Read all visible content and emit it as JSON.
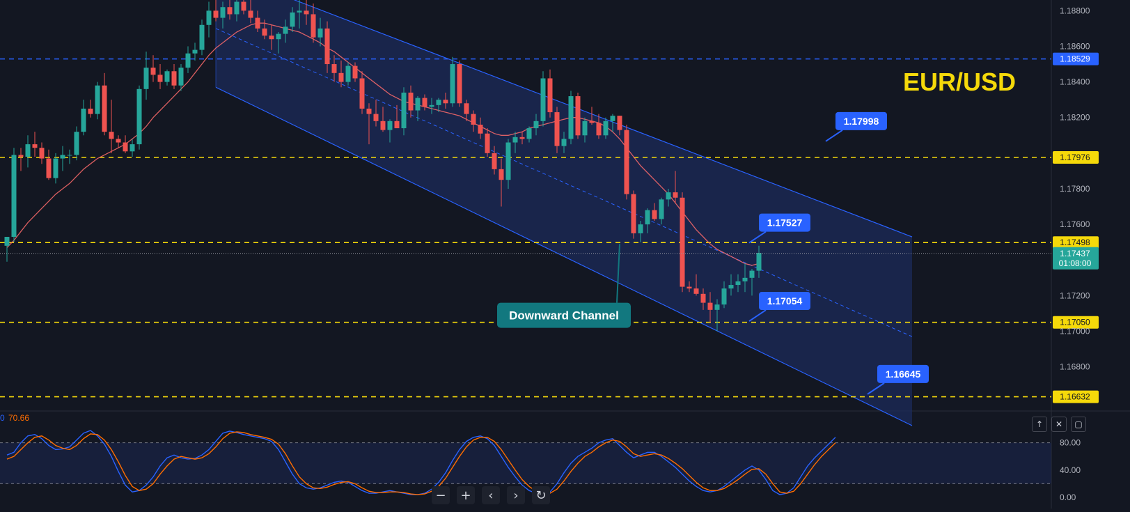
{
  "pair": "EUR/USD",
  "colors": {
    "background": "#131722",
    "up": "#26a69a",
    "down": "#ef5350",
    "channel_fill": "#1c2b5a",
    "channel_line": "#2962ff",
    "level_yellow": "#f5d90a",
    "level_blue": "#2962ff",
    "callout_blue": "#2962ff",
    "callout_teal": "#12787f",
    "sma": "#ff6b6b",
    "stoch_k": "#2962ff",
    "stoch_d": "#ff6d00"
  },
  "icons": [
    "zoom-out-icon",
    "zoom-in-icon",
    "scroll-left-icon",
    "scroll-right-icon",
    "reset-icon",
    "move-up-icon",
    "close-icon",
    "maximize-icon"
  ],
  "chart_data": [
    {
      "type": "candlestick",
      "title": "EUR/USD",
      "ylim": [
        1.1656,
        1.1886
      ],
      "y_ticks": [
        "1.18800",
        "1.18600",
        "1.18400",
        "1.18200",
        "1.17800",
        "1.17600",
        "1.17200",
        "1.17000",
        "1.16800"
      ],
      "last_price": "1.17437",
      "countdown": "01:08:00",
      "candles": [
        [
          1.1748,
          1.1753,
          1.1739,
          1.1753
        ],
        [
          1.1753,
          1.1803,
          1.175,
          1.1799
        ],
        [
          1.1799,
          1.1803,
          1.179,
          1.1798
        ],
        [
          1.1798,
          1.181,
          1.1792,
          1.1805
        ],
        [
          1.1805,
          1.1812,
          1.1798,
          1.1803
        ],
        [
          1.1803,
          1.1806,
          1.1794,
          1.1797
        ],
        [
          1.1797,
          1.1802,
          1.1785,
          1.1786
        ],
        [
          1.1786,
          1.18,
          1.1783,
          1.1797
        ],
        [
          1.1797,
          1.1804,
          1.179,
          1.1799
        ],
        [
          1.1799,
          1.1802,
          1.1794,
          1.1799
        ],
        [
          1.1799,
          1.1815,
          1.1796,
          1.1812
        ],
        [
          1.1812,
          1.183,
          1.181,
          1.1825
        ],
        [
          1.1825,
          1.183,
          1.182,
          1.1822
        ],
        [
          1.1822,
          1.184,
          1.1819,
          1.1838
        ],
        [
          1.1838,
          1.1845,
          1.181,
          1.1812
        ],
        [
          1.1812,
          1.183,
          1.18,
          1.1808
        ],
        [
          1.1808,
          1.181,
          1.1803,
          1.1806
        ],
        [
          1.1806,
          1.181,
          1.18,
          1.1801
        ],
        [
          1.1801,
          1.1808,
          1.1798,
          1.1805
        ],
        [
          1.1805,
          1.1838,
          1.1802,
          1.1836
        ],
        [
          1.1836,
          1.1857,
          1.183,
          1.1848
        ],
        [
          1.1848,
          1.1855,
          1.184,
          1.1844
        ],
        [
          1.1844,
          1.185,
          1.1836,
          1.184
        ],
        [
          1.184,
          1.1847,
          1.1838,
          1.1846
        ],
        [
          1.1846,
          1.185,
          1.1836,
          1.1838
        ],
        [
          1.1838,
          1.185,
          1.1835,
          1.1848
        ],
        [
          1.1848,
          1.186,
          1.1845,
          1.1856
        ],
        [
          1.1856,
          1.1862,
          1.1852,
          1.1858
        ],
        [
          1.1858,
          1.1875,
          1.1855,
          1.1872
        ],
        [
          1.1872,
          1.1885,
          1.1865,
          1.188
        ],
        [
          1.188,
          1.189,
          1.1874,
          1.1876
        ],
        [
          1.1876,
          1.1885,
          1.187,
          1.1882
        ],
        [
          1.1882,
          1.189,
          1.1875,
          1.1878
        ],
        [
          1.1878,
          1.1888,
          1.1874,
          1.1885
        ],
        [
          1.1885,
          1.1892,
          1.1878,
          1.188
        ],
        [
          1.188,
          1.1886,
          1.1873,
          1.1876
        ],
        [
          1.1876,
          1.188,
          1.1868,
          1.187
        ],
        [
          1.187,
          1.1875,
          1.1864,
          1.1866
        ],
        [
          1.1866,
          1.1872,
          1.1858,
          1.1864
        ],
        [
          1.1864,
          1.1868,
          1.1856,
          1.1867
        ],
        [
          1.1867,
          1.1875,
          1.1862,
          1.1871
        ],
        [
          1.1871,
          1.1882,
          1.1868,
          1.1879
        ],
        [
          1.1879,
          1.1886,
          1.187,
          1.188
        ],
        [
          1.188,
          1.1886,
          1.1872,
          1.1878
        ],
        [
          1.1878,
          1.1884,
          1.1862,
          1.1865
        ],
        [
          1.1865,
          1.1876,
          1.186,
          1.187
        ],
        [
          1.187,
          1.1874,
          1.1845,
          1.185
        ],
        [
          1.185,
          1.1855,
          1.184,
          1.1845
        ],
        [
          1.1845,
          1.1852,
          1.1837,
          1.184
        ],
        [
          1.184,
          1.1851,
          1.1838,
          1.1849
        ],
        [
          1.1849,
          1.1851,
          1.184,
          1.1842
        ],
        [
          1.1842,
          1.1846,
          1.1822,
          1.1825
        ],
        [
          1.1825,
          1.1828,
          1.1805,
          1.1822
        ],
        [
          1.1822,
          1.183,
          1.1815,
          1.1818
        ],
        [
          1.1818,
          1.1826,
          1.1812,
          1.1813
        ],
        [
          1.1813,
          1.1819,
          1.1806,
          1.1818
        ],
        [
          1.1818,
          1.1827,
          1.1816,
          1.1814
        ],
        [
          1.1814,
          1.1837,
          1.181,
          1.1834
        ],
        [
          1.1834,
          1.1838,
          1.182,
          1.1824
        ],
        [
          1.1824,
          1.1832,
          1.1818,
          1.1831
        ],
        [
          1.1831,
          1.1833,
          1.1824,
          1.1826
        ],
        [
          1.1826,
          1.1831,
          1.1822,
          1.1827
        ],
        [
          1.1827,
          1.1831,
          1.1823,
          1.183
        ],
        [
          1.183,
          1.1834,
          1.1825,
          1.1828
        ],
        [
          1.1828,
          1.1854,
          1.1826,
          1.185
        ],
        [
          1.185,
          1.1852,
          1.1826,
          1.1828
        ],
        [
          1.1828,
          1.183,
          1.1818,
          1.1822
        ],
        [
          1.1822,
          1.1824,
          1.1812,
          1.1816
        ],
        [
          1.1816,
          1.182,
          1.1808,
          1.1811
        ],
        [
          1.1811,
          1.1814,
          1.1798,
          1.18
        ],
        [
          1.18,
          1.1804,
          1.1788,
          1.1791
        ],
        [
          1.1791,
          1.1797,
          1.177,
          1.1785
        ],
        [
          1.1785,
          1.1808,
          1.178,
          1.1806
        ],
        [
          1.1806,
          1.1812,
          1.18,
          1.1809
        ],
        [
          1.1809,
          1.1812,
          1.1805,
          1.1808
        ],
        [
          1.1808,
          1.1815,
          1.1806,
          1.1814
        ],
        [
          1.1814,
          1.1822,
          1.181,
          1.1818
        ],
        [
          1.1818,
          1.1846,
          1.1815,
          1.1842
        ],
        [
          1.1842,
          1.1847,
          1.182,
          1.1823
        ],
        [
          1.1823,
          1.1826,
          1.18,
          1.1804
        ],
        [
          1.1804,
          1.1812,
          1.18,
          1.1808
        ],
        [
          1.1808,
          1.1835,
          1.1805,
          1.1832
        ],
        [
          1.1832,
          1.1834,
          1.1808,
          1.181
        ],
        [
          1.181,
          1.182,
          1.1806,
          1.1818
        ],
        [
          1.1818,
          1.1826,
          1.1816,
          1.1817
        ],
        [
          1.1817,
          1.1822,
          1.1808,
          1.181
        ],
        [
          1.181,
          1.182,
          1.1808,
          1.1818
        ],
        [
          1.1818,
          1.1822,
          1.1812,
          1.1821
        ],
        [
          1.1821,
          1.1821,
          1.181,
          1.1813
        ],
        [
          1.1813,
          1.1816,
          1.1774,
          1.1777
        ],
        [
          1.1777,
          1.1779,
          1.1752,
          1.1755
        ],
        [
          1.1755,
          1.1762,
          1.175,
          1.176
        ],
        [
          1.176,
          1.1769,
          1.1755,
          1.1768
        ],
        [
          1.1768,
          1.1772,
          1.1762,
          1.1763
        ],
        [
          1.1763,
          1.1775,
          1.176,
          1.1774
        ],
        [
          1.1774,
          1.178,
          1.177,
          1.1778
        ],
        [
          1.1778,
          1.179,
          1.1772,
          1.1775
        ],
        [
          1.1775,
          1.1778,
          1.1722,
          1.1725
        ],
        [
          1.1725,
          1.1728,
          1.1722,
          1.1724
        ],
        [
          1.1724,
          1.1732,
          1.172,
          1.1721
        ],
        [
          1.1721,
          1.1724,
          1.1712,
          1.1716
        ],
        [
          1.1716,
          1.1722,
          1.1705,
          1.1712
        ],
        [
          1.1712,
          1.1718,
          1.17,
          1.1715
        ],
        [
          1.1715,
          1.1728,
          1.1713,
          1.1724
        ],
        [
          1.1724,
          1.1732,
          1.172,
          1.1726
        ],
        [
          1.1726,
          1.1732,
          1.1722,
          1.1728
        ],
        [
          1.1728,
          1.1738,
          1.1722,
          1.173
        ],
        [
          1.173,
          1.1735,
          1.172,
          1.1734
        ],
        [
          1.1734,
          1.1748,
          1.173,
          1.1744
        ]
      ],
      "sma": [
        1.1747,
        1.1751,
        1.1756,
        1.1761,
        1.1765,
        1.1769,
        1.1773,
        1.1777,
        1.178,
        1.1783,
        1.1787,
        1.1791,
        1.1794,
        1.1797,
        1.1799,
        1.1801,
        1.1803,
        1.1805,
        1.1808,
        1.1811,
        1.1815,
        1.182,
        1.1824,
        1.1828,
        1.1832,
        1.1836,
        1.184,
        1.1845,
        1.185,
        1.1855,
        1.1859,
        1.1862,
        1.1865,
        1.1868,
        1.187,
        1.1872,
        1.1873,
        1.1873,
        1.1872,
        1.1871,
        1.187,
        1.1869,
        1.1868,
        1.1866,
        1.1864,
        1.1862,
        1.1859,
        1.1857,
        1.1854,
        1.1851,
        1.1848,
        1.1845,
        1.1842,
        1.1839,
        1.1836,
        1.1833,
        1.1831,
        1.1829,
        1.1828,
        1.1827,
        1.1826,
        1.1825,
        1.1824,
        1.1823,
        1.1822,
        1.1821,
        1.1819,
        1.1817,
        1.1815,
        1.1813,
        1.1811,
        1.181,
        1.181,
        1.1811,
        1.1812,
        1.1814,
        1.1815,
        1.1816,
        1.1817,
        1.1818,
        1.1819,
        1.182,
        1.182,
        1.1819,
        1.1818,
        1.1817,
        1.1815,
        1.1812,
        1.1808,
        1.1803,
        1.1798,
        1.1793,
        1.1789,
        1.1785,
        1.1781,
        1.1777,
        1.1772,
        1.1767,
        1.1762,
        1.1757,
        1.1753,
        1.1749,
        1.1746,
        1.1744,
        1.1742,
        1.174,
        1.1738,
        1.1737,
        1.1738
      ],
      "horizontal_levels": [
        {
          "price": 1.18529,
          "label": "1.18529",
          "style": "blue-dashed"
        },
        {
          "price": 1.17976,
          "label": "1.17976",
          "style": "yellow-dashed"
        },
        {
          "price": 1.17498,
          "label": "1.17498",
          "style": "yellow-dashed"
        },
        {
          "price": 1.1705,
          "label": "1.17050",
          "style": "yellow-dashed"
        },
        {
          "price": 1.16632,
          "label": "1.16632",
          "style": "yellow-dashed"
        }
      ],
      "channel": {
        "start_bar": 30,
        "end_bar": 130,
        "upper": [
          1.1903,
          1.1753
        ],
        "middle": [
          1.187,
          1.1697
        ],
        "lower": [
          1.1837,
          1.1647
        ]
      },
      "callouts": [
        {
          "text": "1.17998",
          "bar": 119,
          "price": 1.1818
        },
        {
          "text": "1.17527",
          "bar": 108,
          "price": 1.1761
        },
        {
          "text": "1.17054",
          "bar": 108,
          "price": 1.1717
        },
        {
          "text": "1.16645",
          "bar": 125,
          "price": 1.1676
        },
        {
          "text": "Downward Channel",
          "bar": 82,
          "price": 1.1716,
          "style": "teal"
        }
      ]
    },
    {
      "type": "line",
      "title": "",
      "legend_value": "70.66",
      "legend_prefix": "0",
      "ylim": [
        0,
        100
      ],
      "y_ticks": [
        "80.00",
        "40.00",
        "0.00"
      ],
      "bands": [
        20,
        80
      ],
      "series": [
        {
          "name": "",
          "values": [
            62,
            66,
            80,
            90,
            92,
            86,
            76,
            70,
            71,
            74,
            84,
            94,
            98,
            90,
            78,
            60,
            38,
            18,
            8,
            10,
            18,
            30,
            46,
            58,
            62,
            58,
            56,
            57,
            62,
            70,
            82,
            94,
            97,
            95,
            92,
            90,
            88,
            86,
            82,
            70,
            52,
            34,
            20,
            14,
            12,
            14,
            18,
            22,
            24,
            22,
            16,
            10,
            6,
            6,
            8,
            10,
            8,
            6,
            4,
            4,
            6,
            12,
            22,
            36,
            54,
            70,
            82,
            88,
            90,
            86,
            76,
            60,
            44,
            30,
            18,
            10,
            6,
            4,
            8,
            20,
            36,
            50,
            60,
            66,
            72,
            80,
            84,
            86,
            76,
            66,
            58,
            62,
            66,
            66,
            60,
            52,
            44,
            34,
            24,
            16,
            10,
            8,
            10,
            16,
            24,
            32,
            40,
            46,
            40,
            26,
            10,
            4,
            6,
            14,
            30,
            46,
            58,
            68,
            78,
            88
          ]
        },
        {
          "name": "",
          "values": [
            56,
            60,
            70,
            80,
            88,
            90,
            84,
            76,
            72,
            70,
            76,
            86,
            93,
            92,
            84,
            70,
            52,
            32,
            16,
            10,
            12,
            20,
            34,
            46,
            56,
            60,
            58,
            56,
            58,
            64,
            74,
            86,
            94,
            96,
            95,
            92,
            90,
            88,
            85,
            78,
            64,
            46,
            30,
            20,
            14,
            13,
            15,
            19,
            22,
            23,
            20,
            14,
            9,
            7,
            7,
            8,
            8,
            7,
            5,
            4,
            5,
            9,
            16,
            28,
            44,
            60,
            74,
            84,
            88,
            88,
            82,
            70,
            55,
            40,
            26,
            16,
            9,
            6,
            6,
            12,
            24,
            38,
            50,
            60,
            66,
            74,
            80,
            84,
            82,
            74,
            64,
            60,
            62,
            64,
            62,
            57,
            50,
            42,
            32,
            22,
            14,
            10,
            10,
            13,
            19,
            26,
            34,
            41,
            42,
            34,
            20,
            8,
            6,
            9,
            20,
            34,
            48,
            60,
            70,
            80
          ]
        }
      ]
    }
  ]
}
